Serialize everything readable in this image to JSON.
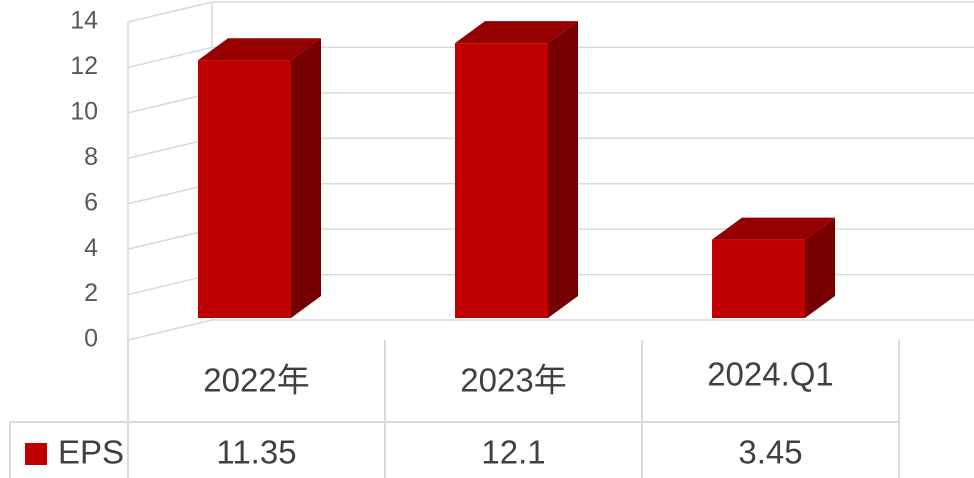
{
  "chart_data": {
    "type": "bar3d",
    "categories": [
      "2022年",
      "2023年",
      "2024.Q1"
    ],
    "series": [
      {
        "name": "EPS",
        "color": "#c00000",
        "values": [
          11.35,
          12.1,
          3.45
        ]
      }
    ],
    "ylim": [
      0,
      14
    ],
    "yticks": [
      0,
      2,
      4,
      6,
      8,
      10,
      12,
      14
    ],
    "grid": true
  }
}
